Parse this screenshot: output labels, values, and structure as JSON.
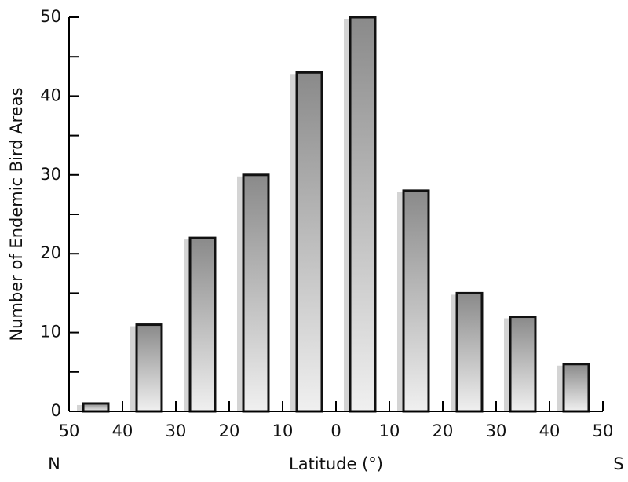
{
  "chart_data": {
    "type": "bar",
    "x_label": "Latitude (°)",
    "y_label": "Number of Endemic Bird Areas",
    "x_left_label": "N",
    "x_right_label": "S",
    "x": [
      -45,
      -35,
      -25,
      -15,
      -5,
      5,
      15,
      25,
      35,
      45
    ],
    "values": [
      1,
      11,
      22,
      30,
      43,
      50,
      28,
      15,
      12,
      6
    ],
    "color_top": "#8a8a8a",
    "color_bottom": "#f0f0f0",
    "xlim": [
      -50,
      50
    ],
    "xticks": [
      {
        "value": -50,
        "label": "50"
      },
      {
        "value": -40,
        "label": "40"
      },
      {
        "value": -30,
        "label": "30"
      },
      {
        "value": -20,
        "label": "20"
      },
      {
        "value": -10,
        "label": "10"
      },
      0,
      {
        "value": 10,
        "label": "10"
      },
      {
        "value": 20,
        "label": "20"
      },
      {
        "value": 30,
        "label": "30"
      },
      {
        "value": 40,
        "label": "40"
      },
      {
        "value": 50,
        "label": "50"
      }
    ],
    "ylim": [
      0,
      50
    ],
    "yticks": [
      0,
      10,
      20,
      30,
      40,
      50
    ],
    "yminorticks": [
      5,
      15,
      25,
      35,
      45
    ],
    "grid": false
  }
}
